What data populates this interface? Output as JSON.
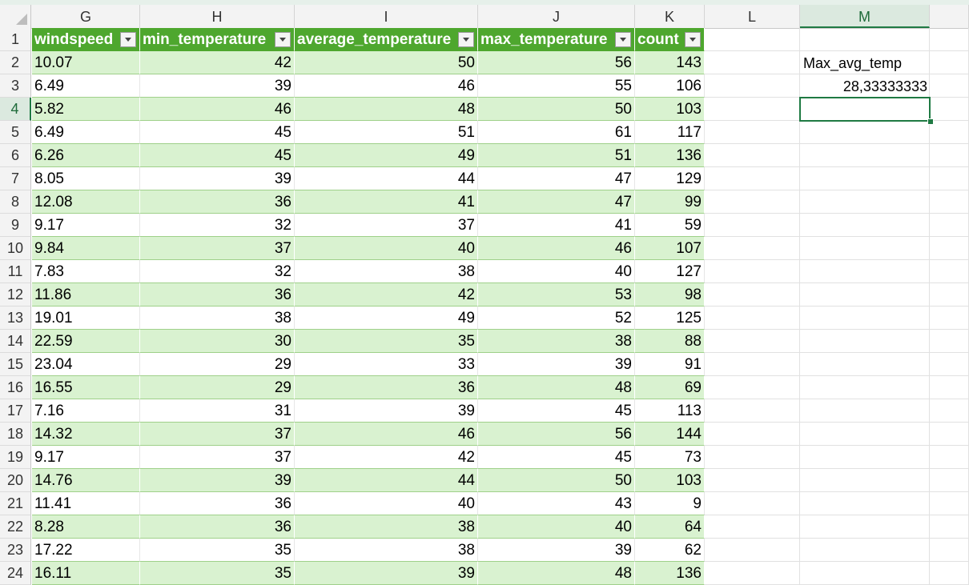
{
  "columns": [
    "G",
    "H",
    "I",
    "J",
    "K",
    "L",
    "M"
  ],
  "active_column": "M",
  "rows": [
    "1",
    "2",
    "3",
    "4",
    "5",
    "6",
    "7",
    "8",
    "9",
    "10",
    "11",
    "12",
    "13",
    "14",
    "15",
    "16",
    "17",
    "18",
    "19",
    "20",
    "21",
    "22",
    "23",
    "24"
  ],
  "active_row": "4",
  "table": {
    "headers": [
      "windspeed",
      "min_temperature",
      "average_temperature",
      "max_temperature",
      "count"
    ],
    "data": [
      [
        "10.07",
        "42",
        "50",
        "56",
        "143"
      ],
      [
        "6.49",
        "39",
        "46",
        "55",
        "106"
      ],
      [
        "5.82",
        "46",
        "48",
        "50",
        "103"
      ],
      [
        "6.49",
        "45",
        "51",
        "61",
        "117"
      ],
      [
        "6.26",
        "45",
        "49",
        "51",
        "136"
      ],
      [
        "8.05",
        "39",
        "44",
        "47",
        "129"
      ],
      [
        "12.08",
        "36",
        "41",
        "47",
        "99"
      ],
      [
        "9.17",
        "32",
        "37",
        "41",
        "59"
      ],
      [
        "9.84",
        "37",
        "40",
        "46",
        "107"
      ],
      [
        "7.83",
        "32",
        "38",
        "40",
        "127"
      ],
      [
        "11.86",
        "36",
        "42",
        "53",
        "98"
      ],
      [
        "19.01",
        "38",
        "49",
        "52",
        "125"
      ],
      [
        "22.59",
        "30",
        "35",
        "38",
        "88"
      ],
      [
        "23.04",
        "29",
        "33",
        "39",
        "91"
      ],
      [
        "16.55",
        "29",
        "36",
        "48",
        "69"
      ],
      [
        "7.16",
        "31",
        "39",
        "45",
        "113"
      ],
      [
        "14.32",
        "37",
        "46",
        "56",
        "144"
      ],
      [
        "9.17",
        "37",
        "42",
        "45",
        "73"
      ],
      [
        "14.76",
        "39",
        "44",
        "50",
        "103"
      ],
      [
        "11.41",
        "36",
        "40",
        "43",
        "9"
      ],
      [
        "8.28",
        "36",
        "38",
        "40",
        "64"
      ],
      [
        "17.22",
        "35",
        "38",
        "39",
        "62"
      ],
      [
        "16.11",
        "35",
        "39",
        "48",
        "136"
      ]
    ]
  },
  "side": {
    "label": "Max_avg_temp",
    "value": "28,33333333"
  },
  "colors": {
    "header_green": "#4ea72e",
    "band_green": "#d9f2d0",
    "selection": "#1f7a43"
  }
}
